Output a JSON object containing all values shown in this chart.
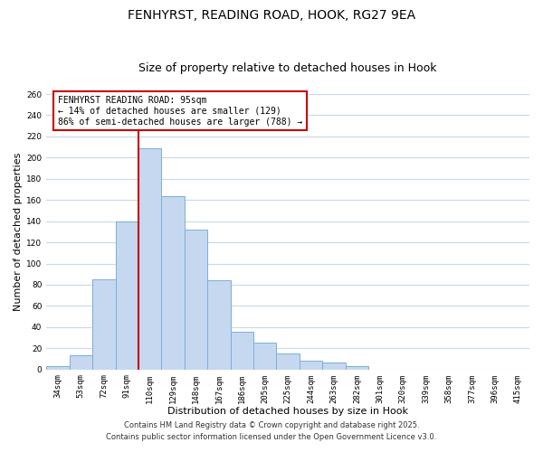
{
  "title": "FENHYRST, READING ROAD, HOOK, RG27 9EA",
  "subtitle": "Size of property relative to detached houses in Hook",
  "xlabel": "Distribution of detached houses by size in Hook",
  "ylabel": "Number of detached properties",
  "categories": [
    "34sqm",
    "53sqm",
    "72sqm",
    "91sqm",
    "110sqm",
    "129sqm",
    "148sqm",
    "167sqm",
    "186sqm",
    "205sqm",
    "225sqm",
    "244sqm",
    "263sqm",
    "282sqm",
    "301sqm",
    "320sqm",
    "339sqm",
    "358sqm",
    "377sqm",
    "396sqm",
    "415sqm"
  ],
  "values": [
    3,
    13,
    85,
    140,
    209,
    164,
    132,
    84,
    36,
    25,
    15,
    8,
    7,
    3,
    0,
    0,
    0,
    0,
    0,
    0,
    0
  ],
  "bar_color": "#c5d8f0",
  "bar_edge_color": "#7bafd4",
  "vline_color": "#cc0000",
  "vline_index": 3,
  "annotation_line1": "FENHYRST READING ROAD: 95sqm",
  "annotation_line2": "← 14% of detached houses are smaller (129)",
  "annotation_line3": "86% of semi-detached houses are larger (788) →",
  "ylim": [
    0,
    260
  ],
  "yticks": [
    0,
    20,
    40,
    60,
    80,
    100,
    120,
    140,
    160,
    180,
    200,
    220,
    240,
    260
  ],
  "footer_line1": "Contains HM Land Registry data © Crown copyright and database right 2025.",
  "footer_line2": "Contains public sector information licensed under the Open Government Licence v3.0.",
  "background_color": "#ffffff",
  "grid_color": "#c8d8e8",
  "title_fontsize": 10,
  "subtitle_fontsize": 9,
  "axis_label_fontsize": 8,
  "tick_fontsize": 6.5,
  "annotation_fontsize": 7,
  "footer_fontsize": 6
}
